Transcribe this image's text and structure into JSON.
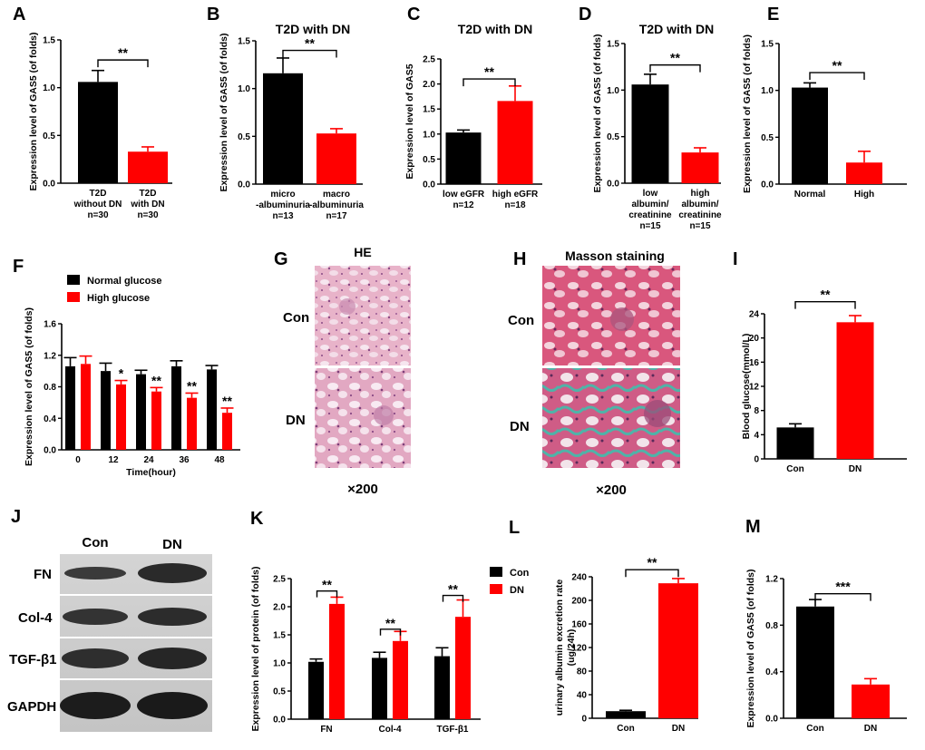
{
  "figure": {
    "colors": {
      "black_bar": "#000000",
      "red_bar": "#ff0000"
    },
    "images": {
      "G": {
        "letter": "G",
        "title": "HE",
        "rows": [
          "Con",
          "DN"
        ],
        "magnification": "×200"
      },
      "H": {
        "letter": "H",
        "title": "Masson staining",
        "rows": [
          "Con",
          "DN"
        ],
        "magnification": "×200"
      },
      "J": {
        "letter": "J",
        "columns": [
          "Con",
          "DN"
        ],
        "rows": [
          "FN",
          "Col-4",
          "TGF-β1",
          "GAPDH"
        ]
      }
    }
  },
  "chart_data": [
    {
      "id": "A",
      "type": "bar",
      "title": "",
      "ylabel": "Expression level of GAS5 (of folds)",
      "xlabel": "",
      "ylim": [
        0,
        1.5
      ],
      "yticks": [
        0.0,
        0.5,
        1.0,
        1.5
      ],
      "categories": [
        "T2D without DN n=30",
        "T2D with DN n=30"
      ],
      "category_lines": [
        [
          "T2D",
          "without DN",
          "n=30"
        ],
        [
          "T2D",
          "with DN",
          "n=30"
        ]
      ],
      "values": [
        1.06,
        0.33
      ],
      "errors": [
        0.12,
        0.05
      ],
      "colors": [
        "#000000",
        "#ff0000"
      ],
      "significance": [
        {
          "from": 0,
          "to": 1,
          "label": "**",
          "y": 1.29
        }
      ]
    },
    {
      "id": "B",
      "type": "bar",
      "title": "T2D with DN",
      "ylabel": "Expression level of GAS5 (of folds)",
      "xlabel": "",
      "ylim": [
        0,
        1.5
      ],
      "yticks": [
        0.0,
        0.5,
        1.0,
        1.5
      ],
      "categories": [
        "micro -albuminuria n=13",
        "macro -albuminuria n=17"
      ],
      "category_lines": [
        [
          "micro",
          "-albuminuria",
          "n=13"
        ],
        [
          "macro",
          "-albuminuria",
          "n=17"
        ]
      ],
      "values": [
        1.16,
        0.53
      ],
      "errors": [
        0.16,
        0.05
      ],
      "colors": [
        "#000000",
        "#ff0000"
      ],
      "significance": [
        {
          "from": 0,
          "to": 1,
          "label": "**",
          "y": 1.4
        }
      ]
    },
    {
      "id": "C",
      "type": "bar",
      "title": "T2D with DN",
      "ylabel": "Expression level of GAS5",
      "xlabel": "",
      "ylim": [
        0,
        2.5
      ],
      "yticks": [
        0.0,
        0.5,
        1.0,
        1.5,
        2.0,
        2.5
      ],
      "categories": [
        "low eGFR n=12",
        "high eGFR n=18"
      ],
      "category_lines": [
        [
          "low eGFR",
          "n=12"
        ],
        [
          "high eGFR",
          "n=18"
        ]
      ],
      "values": [
        1.03,
        1.66
      ],
      "errors": [
        0.05,
        0.3
      ],
      "colors": [
        "#000000",
        "#ff0000"
      ],
      "significance": [
        {
          "from": 0,
          "to": 1,
          "label": "**",
          "y": 2.1
        }
      ]
    },
    {
      "id": "D",
      "type": "bar",
      "title": "T2D with DN",
      "ylabel": "Expression level of GAS5 (of folds)",
      "xlabel": "",
      "ylim": [
        0,
        1.5
      ],
      "yticks": [
        0.0,
        0.5,
        1.0,
        1.5
      ],
      "categories": [
        "low albumin/ creatinine n=15",
        "high albumin/ creatinine n=15"
      ],
      "category_lines": [
        [
          "low",
          "albumin/",
          "creatinine",
          "n=15"
        ],
        [
          "high",
          "albumin/",
          "creatinine",
          "n=15"
        ]
      ],
      "values": [
        1.06,
        0.33
      ],
      "errors": [
        0.11,
        0.05
      ],
      "colors": [
        "#000000",
        "#ff0000"
      ],
      "significance": [
        {
          "from": 0,
          "to": 1,
          "label": "**",
          "y": 1.27
        }
      ]
    },
    {
      "id": "E",
      "type": "bar",
      "title": "",
      "ylabel": "Expression level of GAS5 (of folds)",
      "xlabel": "",
      "ylim": [
        0,
        1.5
      ],
      "yticks": [
        0.0,
        0.5,
        1.0,
        1.5
      ],
      "categories": [
        "Normal",
        "High"
      ],
      "category_lines": [
        [
          "Normal"
        ],
        [
          "High"
        ]
      ],
      "values": [
        1.03,
        0.23
      ],
      "errors": [
        0.05,
        0.12
      ],
      "colors": [
        "#000000",
        "#ff0000"
      ],
      "significance": [
        {
          "from": 0,
          "to": 1,
          "label": "**",
          "y": 1.19
        }
      ]
    },
    {
      "id": "F",
      "type": "bar",
      "title": "",
      "ylabel": "Expression level of GAS5 (of folds)",
      "xlabel": "Time(hour)",
      "ylim": [
        0,
        1.6
      ],
      "yticks": [
        0.0,
        0.4,
        0.8,
        1.2,
        1.6
      ],
      "categories": [
        "0",
        "12",
        "24",
        "36",
        "48"
      ],
      "series": [
        {
          "name": "Normal glucose",
          "color": "#000000",
          "values": [
            1.06,
            1.0,
            0.96,
            1.06,
            1.02
          ],
          "errors": [
            0.11,
            0.1,
            0.05,
            0.07,
            0.05
          ]
        },
        {
          "name": "High glucose",
          "color": "#ff0000",
          "values": [
            1.09,
            0.83,
            0.74,
            0.66,
            0.47
          ],
          "errors": [
            0.1,
            0.05,
            0.05,
            0.06,
            0.06
          ]
        }
      ],
      "annotations": [
        {
          "category": 1,
          "series": 1,
          "label": "*"
        },
        {
          "category": 2,
          "series": 1,
          "label": "**"
        },
        {
          "category": 3,
          "series": 1,
          "label": "**"
        },
        {
          "category": 4,
          "series": 1,
          "label": "**"
        }
      ],
      "legend": "top-left"
    },
    {
      "id": "I",
      "type": "bar",
      "title": "",
      "ylabel": "Blood glucose(mmol/L)",
      "xlabel": "",
      "ylim": [
        0,
        24
      ],
      "yticks": [
        0,
        4,
        8,
        12,
        16,
        20,
        24
      ],
      "categories": [
        "Con",
        "DN"
      ],
      "category_lines": [
        [
          "Con"
        ],
        [
          "DN"
        ]
      ],
      "values": [
        5.2,
        22.6
      ],
      "errors": [
        0.6,
        1.1
      ],
      "colors": [
        "#000000",
        "#ff0000"
      ],
      "significance": [
        {
          "from": 0,
          "to": 1,
          "label": "**",
          "y": 26.0
        }
      ]
    },
    {
      "id": "K",
      "type": "bar",
      "title": "",
      "ylabel": "Expression level of protein (of folds)",
      "xlabel": "",
      "ylim": [
        0,
        2.5
      ],
      "yticks": [
        0.0,
        0.5,
        1.0,
        1.5,
        2.0,
        2.5
      ],
      "categories": [
        "FN",
        "Col-4",
        "TGF-β1"
      ],
      "series": [
        {
          "name": "Con",
          "color": "#000000",
          "values": [
            1.02,
            1.09,
            1.12
          ],
          "errors": [
            0.05,
            0.1,
            0.15
          ]
        },
        {
          "name": "DN",
          "color": "#ff0000",
          "values": [
            2.05,
            1.39,
            1.82
          ],
          "errors": [
            0.12,
            0.17,
            0.3
          ]
        }
      ],
      "significance": [
        {
          "category": 0,
          "label": "**",
          "y": 2.28
        },
        {
          "category": 1,
          "label": "**",
          "y": 1.6
        },
        {
          "category": 2,
          "label": "**",
          "y": 2.2
        }
      ],
      "legend": "top-right"
    },
    {
      "id": "L",
      "type": "bar",
      "title": "",
      "ylabel": "urinary albumin excretion rate (ug/24h)",
      "ylabel_lines": [
        "urinary albumin excretion rate",
        "(ug/24h)"
      ],
      "xlabel": "",
      "ylim": [
        0,
        240
      ],
      "yticks": [
        0,
        40,
        80,
        120,
        160,
        200,
        240
      ],
      "categories": [
        "Con",
        "DN"
      ],
      "category_lines": [
        [
          "Con"
        ],
        [
          "DN"
        ]
      ],
      "values": [
        12,
        229
      ],
      "errors": [
        1.5,
        8
      ],
      "colors": [
        "#000000",
        "#ff0000"
      ],
      "significance": [
        {
          "from": 0,
          "to": 1,
          "label": "**",
          "y": 252
        }
      ]
    },
    {
      "id": "M",
      "type": "bar",
      "title": "",
      "ylabel": "Expression level of GAS5 (of folds)",
      "xlabel": "",
      "ylim": [
        0,
        1.2
      ],
      "yticks": [
        0.0,
        0.4,
        0.8,
        1.2
      ],
      "categories": [
        "Con",
        "DN"
      ],
      "category_lines": [
        [
          "Con"
        ],
        [
          "DN"
        ]
      ],
      "values": [
        0.96,
        0.29
      ],
      "errors": [
        0.06,
        0.05
      ],
      "colors": [
        "#000000",
        "#ff0000"
      ],
      "significance": [
        {
          "from": 0,
          "to": 1,
          "label": "***",
          "y": 1.07
        }
      ]
    }
  ]
}
